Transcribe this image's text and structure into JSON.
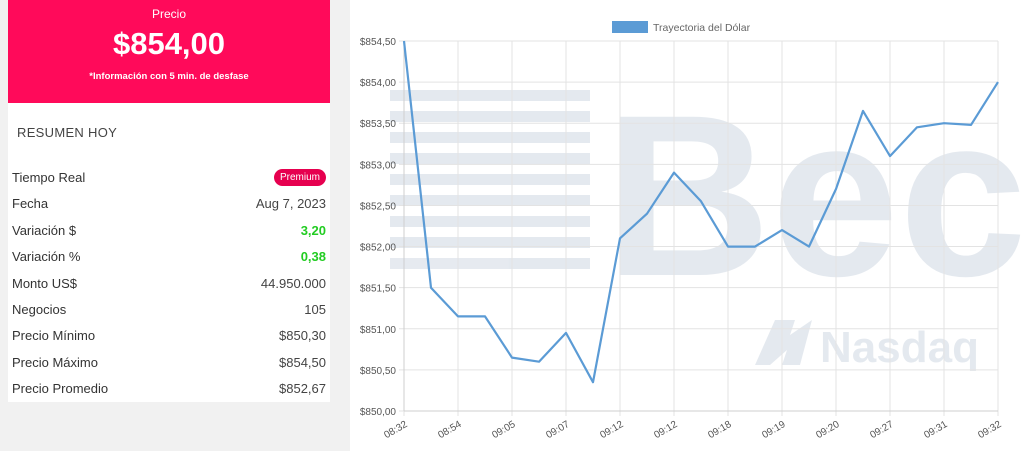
{
  "price_panel": {
    "label": "Precio",
    "value": "$854,00",
    "note": "*Información con 5 min. de desfase",
    "accent_color": "#ff0a5a"
  },
  "summary": {
    "title": "RESUMEN HOY",
    "rows": [
      {
        "label": "Tiempo Real",
        "value": "Premium",
        "type": "badge"
      },
      {
        "label": "Fecha",
        "value": "Aug 7, 2023"
      },
      {
        "label": "Variación $",
        "value": "3,20",
        "type": "positive"
      },
      {
        "label": "Variación %",
        "value": "0,38",
        "type": "positive"
      },
      {
        "label": "Monto US$",
        "value": "44.950.000"
      },
      {
        "label": "Negocios",
        "value": "105"
      },
      {
        "label": "Precio Mínimo",
        "value": "$850,30"
      },
      {
        "label": "Precio Máximo",
        "value": "$854,50"
      },
      {
        "label": "Precio Promedio",
        "value": "$852,67"
      }
    ]
  },
  "watermark": {
    "text": "Bec",
    "subtext": "Nasdaq",
    "icon": "nasdaq-logo-icon"
  },
  "chart_data": {
    "type": "line",
    "title": "",
    "xlabel": "",
    "ylabel": "",
    "legend": "top-center",
    "grid": true,
    "ylim": [
      850.0,
      854.5
    ],
    "yticks": [
      "$850,00",
      "$850,50",
      "$851,00",
      "$851,50",
      "$852,00",
      "$852,50",
      "$853,00",
      "$853,50",
      "$854,00",
      "$854,50"
    ],
    "xtick_labels": [
      "08:32",
      "08:54",
      "09:05",
      "09:07",
      "09:12",
      "09:12",
      "09:18",
      "09:19",
      "09:20",
      "09:27",
      "09:31",
      "09:32"
    ],
    "series": [
      {
        "name": "Trayectoria del Dólar",
        "color": "#5b9bd5",
        "values": [
          854.5,
          851.5,
          851.15,
          851.15,
          850.65,
          850.6,
          850.95,
          850.35,
          852.1,
          852.4,
          852.9,
          852.55,
          852.0,
          852.0,
          852.2,
          852.0,
          852.7,
          853.65,
          853.1,
          853.45,
          853.5,
          853.48,
          854.0
        ]
      }
    ]
  }
}
